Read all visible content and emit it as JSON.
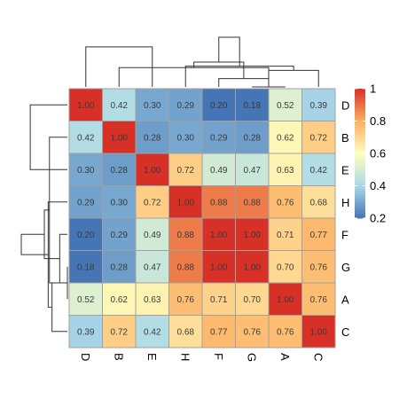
{
  "chart_data": {
    "type": "heatmap",
    "title": "",
    "row_labels": [
      "D",
      "B",
      "E",
      "H",
      "F",
      "G",
      "A",
      "C"
    ],
    "col_labels": [
      "D",
      "B",
      "E",
      "H",
      "F",
      "G",
      "A",
      "C"
    ],
    "matrix": [
      [
        1.0,
        0.42,
        0.3,
        0.29,
        0.2,
        0.18,
        0.52,
        0.39
      ],
      [
        0.42,
        1.0,
        0.28,
        0.3,
        0.29,
        0.28,
        0.62,
        0.72
      ],
      [
        0.3,
        0.28,
        1.0,
        0.72,
        0.49,
        0.47,
        0.63,
        0.42
      ],
      [
        0.29,
        0.3,
        0.72,
        1.0,
        0.88,
        0.88,
        0.76,
        0.68
      ],
      [
        0.2,
        0.29,
        0.49,
        0.88,
        1.0,
        1.0,
        0.71,
        0.77
      ],
      [
        0.18,
        0.28,
        0.47,
        0.88,
        1.0,
        1.0,
        0.7,
        0.76
      ],
      [
        0.52,
        0.62,
        0.63,
        0.76,
        0.71,
        0.7,
        1.0,
        0.76
      ],
      [
        0.39,
        0.72,
        0.42,
        0.68,
        0.77,
        0.76,
        0.76,
        1.0
      ]
    ],
    "value_format": "2 decimals",
    "color_scale": {
      "stops": [
        {
          "value": 0.2,
          "color": "#4575b4"
        },
        {
          "value": 0.4,
          "color": "#abd9e9"
        },
        {
          "value": 0.6,
          "color": "#ffffbf"
        },
        {
          "value": 0.8,
          "color": "#fdae61"
        },
        {
          "value": 1.0,
          "color": "#d73027"
        }
      ]
    },
    "legend": {
      "position": "right",
      "ticks": [
        "0.2",
        "0.4",
        "0.6",
        "0.8",
        "1"
      ]
    },
    "dendrogram": {
      "rows_position": "left",
      "cols_position": "top",
      "order": [
        "D",
        "B",
        "E",
        "H",
        "F",
        "G",
        "A",
        "C"
      ],
      "merges": [
        [
          5,
          6,
          0.0
        ],
        [
          4,
          8,
          0.12
        ],
        [
          1,
          8,
          0.28
        ],
        [
          7,
          8,
          0.24
        ],
        [
          9,
          10,
          0.36
        ],
        [
          3,
          11,
          0.3
        ],
        [
          0,
          2,
          0.58
        ],
        [
          12,
          13,
          0.72
        ]
      ]
    },
    "cell_border_color": "#a0a0a0"
  }
}
